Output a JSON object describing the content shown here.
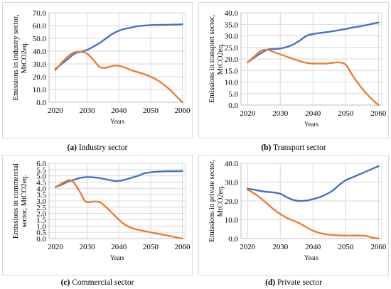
{
  "chart_data": [
    {
      "type": "line",
      "caption_letter": "(a)",
      "caption_text": "Industry sector",
      "xlabel": "Years",
      "ylabel_line1": "Emissions in industry sector,",
      "ylabel_line2": "MtCO2eq.",
      "xlim": [
        2018,
        2061
      ],
      "ylim": [
        0,
        70
      ],
      "x_ticks": [
        2020,
        2030,
        2040,
        2050,
        2060
      ],
      "y_ticks": [
        "0.0",
        "10.0",
        "20.0",
        "30.0",
        "40.0",
        "50.0",
        "60.0",
        "70.0"
      ],
      "colors": [
        "#4472C4",
        "#ED7D31"
      ],
      "series": [
        {
          "x": [
            2020,
            2024,
            2026,
            2028,
            2030,
            2032,
            2034,
            2036,
            2038,
            2040,
            2042,
            2044,
            2046,
            2048,
            2050,
            2052,
            2055,
            2058,
            2060
          ],
          "values": [
            26,
            34,
            38,
            39.5,
            41,
            43.5,
            46.5,
            50,
            53.5,
            56,
            57.5,
            58.5,
            59.5,
            60,
            60.3,
            60.5,
            60.6,
            60.8,
            61
          ]
        },
        {
          "x": [
            2020,
            2022,
            2024,
            2026,
            2028,
            2030,
            2032,
            2034,
            2036,
            2038,
            2040,
            2042,
            2044,
            2046,
            2048,
            2050,
            2052,
            2054,
            2056,
            2058,
            2060
          ],
          "values": [
            25,
            31,
            36,
            39,
            39.5,
            38,
            33,
            27.5,
            27,
            28.5,
            28.5,
            27,
            25,
            23.5,
            22,
            20,
            17.5,
            14,
            10,
            5,
            0
          ]
        }
      ]
    },
    {
      "type": "line",
      "caption_letter": "(b)",
      "caption_text": "Transport sector",
      "xlabel": "Years",
      "ylabel_line1": "Emissions in transport sector,",
      "ylabel_line2": "MtCO2eq.",
      "xlim": [
        2018,
        2061
      ],
      "ylim": [
        0,
        40
      ],
      "x_ticks": [
        2020,
        2030,
        2040,
        2050,
        2060
      ],
      "y_ticks": [
        "0.0",
        "5.0",
        "10.0",
        "15.0",
        "20.0",
        "25.0",
        "30.0",
        "35.0",
        "40.0"
      ],
      "colors": [
        "#4472C4",
        "#ED7D31"
      ],
      "series": [
        {
          "x": [
            2020,
            2023,
            2026,
            2028,
            2030,
            2032,
            2034,
            2036,
            2038,
            2040,
            2042,
            2044,
            2046,
            2048,
            2050,
            2052,
            2055,
            2058,
            2060
          ],
          "values": [
            18.5,
            21.5,
            24,
            24.3,
            24.5,
            25.2,
            26.3,
            28,
            30,
            30.8,
            31.2,
            31.6,
            32,
            32.5,
            33,
            33.6,
            34.3,
            35.2,
            35.8
          ]
        },
        {
          "x": [
            2020,
            2022,
            2024,
            2026,
            2028,
            2030,
            2032,
            2034,
            2036,
            2038,
            2040,
            2042,
            2044,
            2046,
            2048,
            2050,
            2052,
            2054,
            2056,
            2058,
            2060
          ],
          "values": [
            18.5,
            21,
            23.5,
            24,
            23,
            22,
            21,
            20,
            19,
            18.3,
            18,
            18,
            18,
            18.3,
            18.5,
            17.5,
            13,
            9,
            5.5,
            2.5,
            0
          ]
        }
      ]
    },
    {
      "type": "line",
      "caption_letter": "(c)",
      "caption_text": "Commercial sector",
      "xlabel": "Years",
      "ylabel_line1": "Emissions in commercial",
      "ylabel_line2": "sector, MtCO2eq.",
      "xlim": [
        2018,
        2061
      ],
      "ylim": [
        0,
        6
      ],
      "x_ticks": [
        2020,
        2030,
        2040,
        2050,
        2060
      ],
      "y_ticks": [
        "0.0",
        "0.5",
        "1.0",
        "1.5",
        "2.0",
        "2.5",
        "3.0",
        "3.5",
        "4.0",
        "4.5",
        "5.0",
        "5.5",
        "6.0"
      ],
      "colors": [
        "#4472C4",
        "#ED7D31"
      ],
      "series": [
        {
          "x": [
            2020,
            2022,
            2024,
            2026,
            2028,
            2030,
            2032,
            2034,
            2036,
            2038,
            2040,
            2042,
            2044,
            2046,
            2048,
            2050,
            2052,
            2055,
            2058,
            2060
          ],
          "values": [
            4.1,
            4.3,
            4.55,
            4.7,
            4.85,
            4.9,
            4.88,
            4.82,
            4.72,
            4.62,
            4.6,
            4.7,
            4.85,
            5.0,
            5.2,
            5.28,
            5.33,
            5.36,
            5.37,
            5.38
          ]
        },
        {
          "x": [
            2020,
            2022,
            2024,
            2025,
            2026,
            2028,
            2029,
            2030,
            2032,
            2034,
            2036,
            2038,
            2040,
            2042,
            2044,
            2046,
            2048,
            2050,
            2052,
            2054,
            2056,
            2058,
            2060
          ],
          "values": [
            4.1,
            4.4,
            4.65,
            4.62,
            4.4,
            3.6,
            3.1,
            2.9,
            2.95,
            2.9,
            2.5,
            2.0,
            1.5,
            1.1,
            0.85,
            0.7,
            0.6,
            0.5,
            0.4,
            0.3,
            0.2,
            0.1,
            0.0
          ]
        }
      ]
    },
    {
      "type": "line",
      "caption_letter": "(d)",
      "caption_text": "Private sector",
      "xlabel": "Years",
      "ylabel_line1": "Emissions in private  sector,",
      "ylabel_line2": "MtCO2eq.",
      "xlim": [
        2018,
        2061
      ],
      "ylim": [
        0,
        40
      ],
      "x_ticks": [
        2020,
        2030,
        2040,
        2050,
        2060
      ],
      "y_ticks": [
        "0.0",
        "10.0",
        "20.0",
        "30.0",
        "40.0"
      ],
      "colors": [
        "#4472C4",
        "#ED7D31"
      ],
      "series": [
        {
          "x": [
            2020,
            2022,
            2024,
            2026,
            2028,
            2030,
            2032,
            2034,
            2036,
            2038,
            2040,
            2042,
            2044,
            2046,
            2048,
            2050,
            2052,
            2054,
            2056,
            2058,
            2060
          ],
          "values": [
            26.5,
            26,
            25.3,
            24.8,
            24.5,
            23.8,
            22,
            20.5,
            20,
            20.2,
            21,
            22,
            23.5,
            25.5,
            28.5,
            31,
            32.5,
            34,
            35.5,
            37,
            38.5
          ]
        },
        {
          "x": [
            2020,
            2022,
            2024,
            2026,
            2028,
            2030,
            2032,
            2034,
            2036,
            2038,
            2040,
            2042,
            2044,
            2046,
            2048,
            2050,
            2052,
            2054,
            2056,
            2058,
            2060
          ],
          "values": [
            26,
            24,
            21.5,
            18.5,
            15.5,
            13,
            11,
            9.5,
            8,
            6,
            4.2,
            3,
            2.3,
            1.9,
            1.7,
            1.6,
            1.6,
            1.6,
            1.5,
            0.6,
            0
          ]
        }
      ]
    }
  ]
}
